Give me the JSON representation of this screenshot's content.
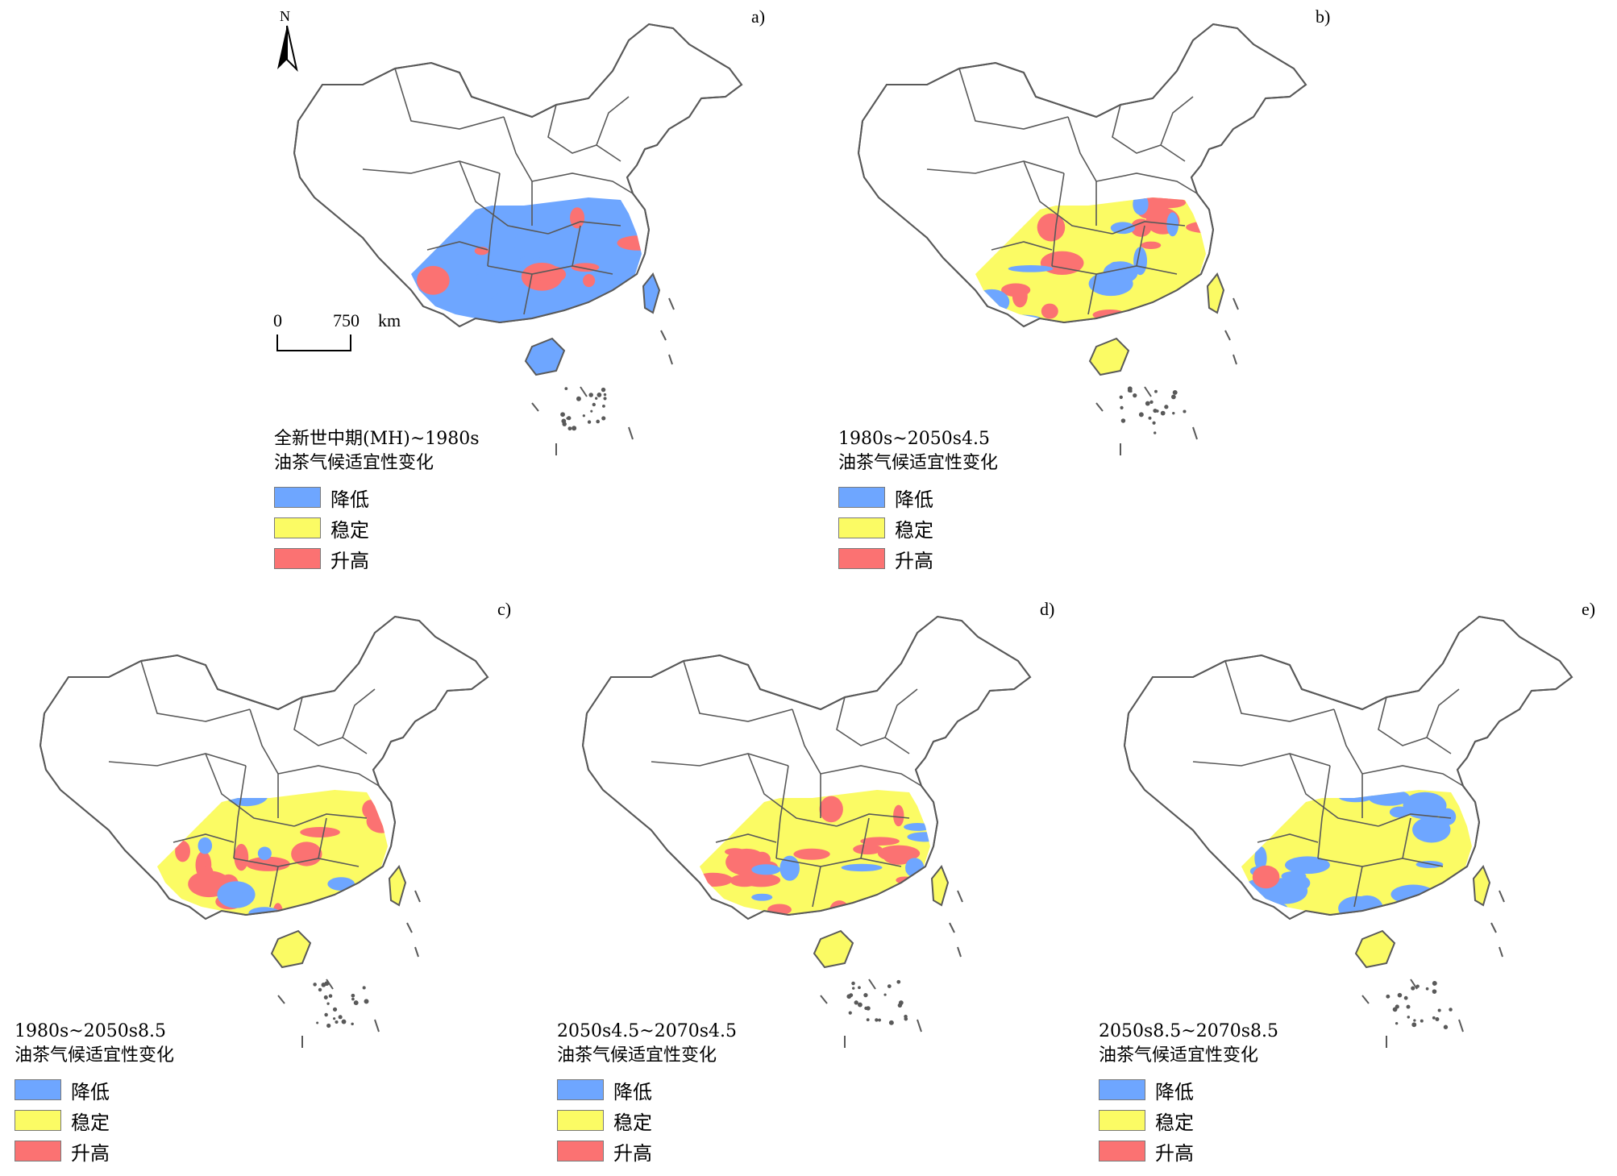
{
  "colors": {
    "decrease": "#6ea6ff",
    "stable": "#fbfb64",
    "increase": "#fb7272",
    "boundary": "#595959"
  },
  "legend_items": [
    {
      "label": "降低",
      "color_key": "decrease"
    },
    {
      "label": "稳定",
      "color_key": "stable"
    },
    {
      "label": "升高",
      "color_key": "increase"
    }
  ],
  "north_arrow": {
    "label": "N"
  },
  "scale_bar": {
    "start": "0",
    "end": "750",
    "unit": "km"
  },
  "panels": [
    {
      "letter": "a)",
      "title_line1": "全新世中期(MH)~1980s",
      "title_line2": "油茶气候适宜性变化",
      "dominant": "decrease"
    },
    {
      "letter": "b)",
      "title_line1": "1980s~2050s4.5",
      "title_line2": "油茶气候适宜性变化",
      "dominant": "stable"
    },
    {
      "letter": "c)",
      "title_line1": "1980s~2050s8.5",
      "title_line2": "油茶气候适宜性变化",
      "dominant": "stable"
    },
    {
      "letter": "d)",
      "title_line1": "2050s4.5~2070s4.5",
      "title_line2": "油茶气候适宜性变化",
      "dominant": "stable"
    },
    {
      "letter": "e)",
      "title_line1": "2050s8.5~2070s8.5",
      "title_line2": "油茶气候适宜性变化",
      "dominant": "stable"
    }
  ]
}
